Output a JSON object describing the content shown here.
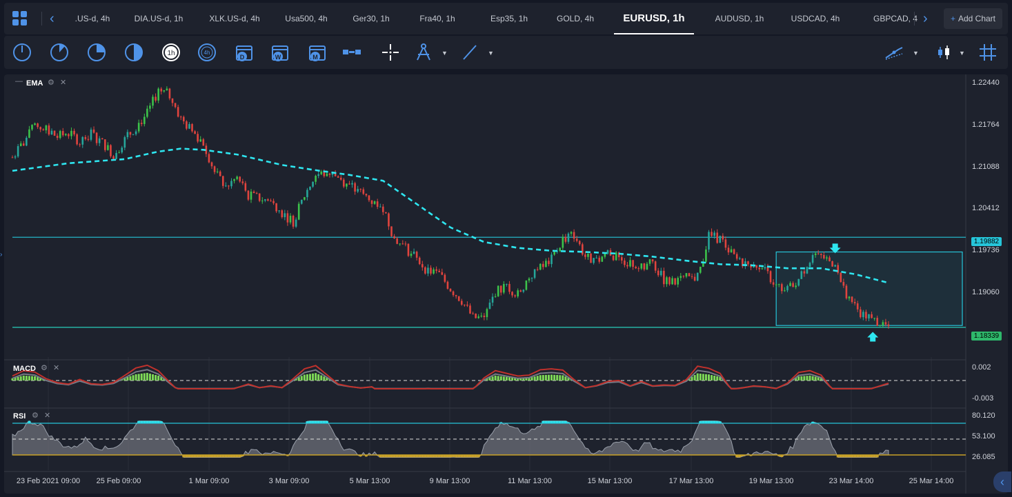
{
  "tabs": {
    "items": [
      ".US-d, 4h",
      "DIA.US-d, 1h",
      "XLK.US-d, 4h",
      "Usa500, 4h",
      "Ger30, 1h",
      "Fra40, 1h",
      "Esp35, 1h",
      "GOLD, 4h",
      "EURUSD, 1h",
      "AUDUSD, 1h",
      "USDCAD, 4h",
      "GBPCAD, 4"
    ],
    "active_index": 8,
    "add_chart_label": "Add Chart"
  },
  "toolbar": {
    "timeframe_icons": [
      "clock-quarter-icon",
      "clock-third-icon",
      "clock-half-icon",
      "clock-full-icon",
      "timeframe-1h-icon",
      "timeframe-4h-icon",
      "calendar-day-icon",
      "calendar-week-icon",
      "calendar-month-icon"
    ],
    "timeframe_texts": [
      "1h",
      "4h",
      "D",
      "W",
      "M"
    ],
    "drawing_icons": [
      "ruler-icon",
      "crosshair-icon",
      "compass-icon",
      "trendline-icon"
    ],
    "right_icons": [
      "indicators-icon",
      "chart-type-icon",
      "grid-icon"
    ]
  },
  "indicators": {
    "ema_label": "EMA",
    "macd_label": "MACD",
    "rsi_label": "RSI"
  },
  "price_axis": {
    "ticks": [
      "1.22440",
      "1.21764",
      "1.21088",
      "1.20412",
      "1.19736",
      "1.19060"
    ],
    "resistance_tag": "1.19882",
    "support_tag": "1.18339",
    "resistance_color": "#26c6da",
    "support_color": "#26a69a"
  },
  "macd_axis": {
    "ticks": [
      "0.002",
      "-0.003"
    ]
  },
  "rsi_axis": {
    "ticks": [
      "80.120",
      "53.100",
      "26.085"
    ]
  },
  "time_axis": {
    "labels": [
      "23 Feb 2021 09:00",
      "25 Feb 09:00",
      "1 Mar 09:00",
      "3 Mar 09:00",
      "5 Mar 13:00",
      "9 Mar 13:00",
      "11 Mar 13:00",
      "15 Mar 13:00",
      "17 Mar 13:00",
      "19 Mar 13:00",
      "23 Mar 14:00",
      "25 Mar 14:00"
    ]
  },
  "colors": {
    "background": "#1e222d",
    "up_candle": "#26a69a",
    "up_candle_bright": "#3cc24a",
    "down_candle": "#e0443e",
    "ema_line": "#2ee6f0",
    "accent": "#4f93e8"
  },
  "chart_data": {
    "type": "candlestick",
    "symbol": "EURUSD",
    "timeframe": "1h",
    "ylim": [
      1.179,
      1.226
    ],
    "price_path": [
      [
        0,
        1.2125
      ],
      [
        2,
        1.215
      ],
      [
        4,
        1.218
      ],
      [
        6,
        1.2172
      ],
      [
        8,
        1.216
      ],
      [
        10,
        1.2168
      ],
      [
        12,
        1.2152
      ],
      [
        14,
        1.2166
      ],
      [
        16,
        1.215
      ],
      [
        18,
        1.213
      ],
      [
        20,
        1.2155
      ],
      [
        22,
        1.2178
      ],
      [
        24,
        1.22
      ],
      [
        26,
        1.224
      ],
      [
        28,
        1.2232
      ],
      [
        30,
        1.219
      ],
      [
        32,
        1.217
      ],
      [
        34,
        1.215
      ],
      [
        36,
        1.21
      ],
      [
        38,
        1.2075
      ],
      [
        40,
        1.209
      ],
      [
        42,
        1.206
      ],
      [
        44,
        1.2055
      ],
      [
        46,
        1.205
      ],
      [
        48,
        1.203
      ],
      [
        50,
        1.2015
      ],
      [
        52,
        1.206
      ],
      [
        54,
        1.2095
      ],
      [
        56,
        1.2098
      ],
      [
        58,
        1.2092
      ],
      [
        60,
        1.2075
      ],
      [
        62,
        1.2065
      ],
      [
        64,
        1.205
      ],
      [
        66,
        1.204
      ],
      [
        68,
        1.1985
      ],
      [
        70,
        1.197
      ],
      [
        72,
        1.195
      ],
      [
        74,
        1.193
      ],
      [
        76,
        1.1925
      ],
      [
        78,
        1.19
      ],
      [
        80,
        1.188
      ],
      [
        82,
        1.185
      ],
      [
        84,
        1.185
      ],
      [
        86,
        1.1895
      ],
      [
        88,
        1.1905
      ],
      [
        90,
        1.189
      ],
      [
        92,
        1.192
      ],
      [
        94,
        1.1935
      ],
      [
        96,
        1.195
      ],
      [
        98,
        1.1985
      ],
      [
        100,
        1.1993
      ],
      [
        102,
        1.1955
      ],
      [
        104,
        1.1945
      ],
      [
        106,
        1.1965
      ],
      [
        108,
        1.195
      ],
      [
        110,
        1.1945
      ],
      [
        112,
        1.1935
      ],
      [
        114,
        1.1945
      ],
      [
        116,
        1.1915
      ],
      [
        118,
        1.191
      ],
      [
        120,
        1.1918
      ],
      [
        122,
        1.192
      ],
      [
        124,
        1.199
      ],
      [
        126,
        1.1986
      ],
      [
        128,
        1.196
      ],
      [
        130,
        1.194
      ],
      [
        132,
        1.1945
      ],
      [
        134,
        1.193
      ],
      [
        136,
        1.1905
      ],
      [
        138,
        1.19
      ],
      [
        140,
        1.1915
      ],
      [
        142,
        1.195
      ],
      [
        144,
        1.1955
      ],
      [
        146,
        1.1945
      ],
      [
        148,
        1.19
      ],
      [
        150,
        1.187
      ],
      [
        152,
        1.185
      ],
      [
        154,
        1.1845
      ],
      [
        156,
        1.1835
      ]
    ],
    "ema_path": [
      [
        0,
        1.2102
      ],
      [
        10,
        1.2115
      ],
      [
        20,
        1.2122
      ],
      [
        26,
        1.2135
      ],
      [
        30,
        1.214
      ],
      [
        34,
        1.2138
      ],
      [
        40,
        1.213
      ],
      [
        48,
        1.2112
      ],
      [
        54,
        1.2103
      ],
      [
        60,
        1.2095
      ],
      [
        66,
        1.2085
      ],
      [
        72,
        1.2045
      ],
      [
        78,
        1.2005
      ],
      [
        84,
        1.198
      ],
      [
        90,
        1.197
      ],
      [
        96,
        1.1965
      ],
      [
        102,
        1.1963
      ],
      [
        108,
        1.196
      ],
      [
        114,
        1.1955
      ],
      [
        120,
        1.1948
      ],
      [
        126,
        1.1942
      ],
      [
        132,
        1.194
      ],
      [
        138,
        1.1935
      ],
      [
        144,
        1.1935
      ],
      [
        150,
        1.1925
      ],
      [
        156,
        1.191
      ]
    ],
    "horizontal_lines": [
      1.19882,
      1.18339
    ],
    "macd_range": [
      -0.003,
      0.002
    ],
    "rsi_levels": [
      80.12,
      53.1,
      26.085
    ]
  }
}
